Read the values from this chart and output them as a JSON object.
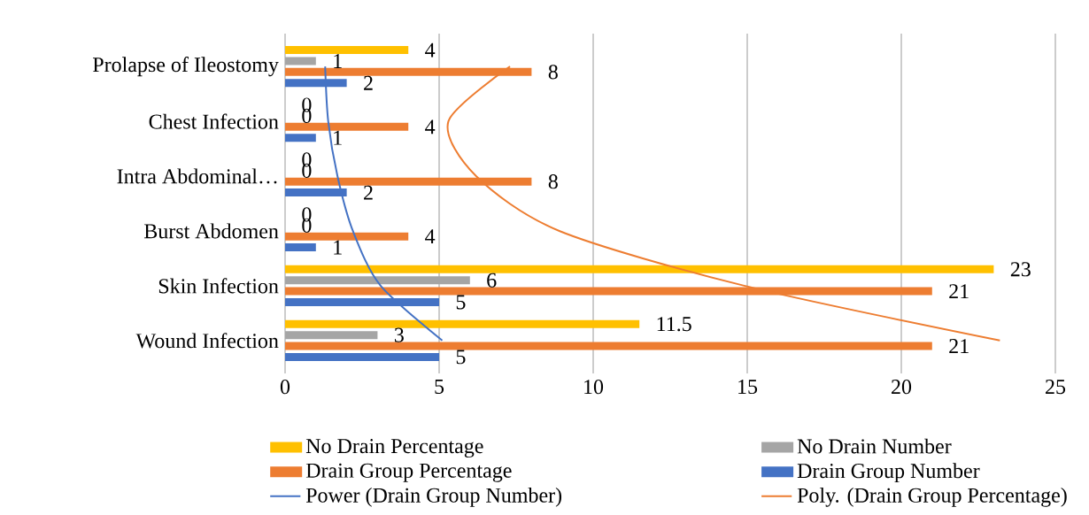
{
  "chart_data": {
    "type": "bar",
    "orientation": "horizontal",
    "categories": [
      "Prolapse of Ileostomy",
      "Chest Infection",
      "Intra Abdominal…",
      "Burst Abdomen",
      "Skin Infection",
      "Wound Infection"
    ],
    "series": [
      {
        "name": "No Drain Percentage",
        "color": "#ffc000",
        "values": [
          4,
          0,
          0,
          0,
          23,
          11.5
        ],
        "value_labels": [
          "4",
          "0",
          "0",
          "0",
          "23",
          "11.5"
        ]
      },
      {
        "name": "No Drain Number",
        "color": "#a5a5a5",
        "values": [
          1,
          0,
          0,
          0,
          6,
          3
        ],
        "value_labels": [
          "1",
          "0",
          "0",
          "0",
          "6",
          "3"
        ]
      },
      {
        "name": "Drain Group Percentage",
        "color": "#ed7d31",
        "values": [
          8,
          4,
          8,
          4,
          21,
          21
        ],
        "value_labels": [
          "8",
          "4",
          "8",
          "4",
          "21",
          "21"
        ]
      },
      {
        "name": "Drain Group Number",
        "color": "#4472c4",
        "values": [
          2,
          1,
          2,
          1,
          5,
          5
        ],
        "value_labels": [
          "2",
          "1",
          "2",
          "1",
          "5",
          "5"
        ]
      },
      {
        "name": "Power (Drain Group Number)",
        "type": "line",
        "color": "#4472c4",
        "values": [
          1.3,
          1.4,
          1.7,
          2.2,
          3.1,
          5.1
        ]
      },
      {
        "name": "Poly. (Drain Group Percentage)",
        "type": "line",
        "color": "#ed7d31",
        "values": [
          7.3,
          5.3,
          6.2,
          8.9,
          14.9,
          23.2
        ]
      }
    ],
    "xlim": [
      0,
      25
    ],
    "xticks": [
      0,
      5,
      10,
      15,
      20,
      25
    ],
    "grid": "x",
    "legend": "bottom"
  }
}
